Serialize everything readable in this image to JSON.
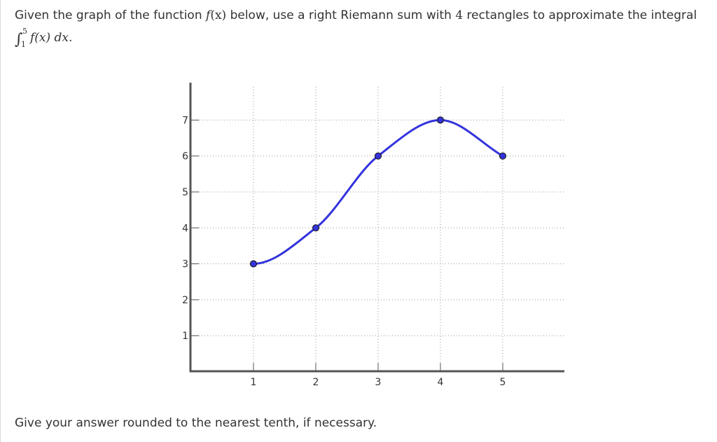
{
  "question": {
    "text_before": "Given the graph of the function ",
    "fname": "f",
    "fvar": "(x)",
    "text_middle": " below, use a right Riemann sum with ",
    "rect_count": "4",
    "text_after": " rectangles to approximate the integral"
  },
  "integral": {
    "sign": "∫",
    "upper": "5",
    "lower": "1",
    "body": "f(x) dx."
  },
  "footer": "Give your answer rounded to the nearest tenth, if necessary.",
  "colors": {
    "curve": "#3333dd",
    "point_fill": "#3333dd",
    "point_stroke": "#222222",
    "axis": "#555555",
    "grid": "#999999",
    "text": "#333333"
  },
  "chart_data": {
    "type": "line",
    "title": "",
    "xlabel": "",
    "ylabel": "",
    "xlim": [
      -0.05,
      5.0
    ],
    "ylim": [
      0,
      8.0
    ],
    "xticks": [
      1,
      2,
      3,
      4,
      5
    ],
    "yticks": [
      1,
      2,
      3,
      4,
      5,
      6,
      7
    ],
    "grid": "dotted",
    "points": [
      {
        "x": 1,
        "y": 3
      },
      {
        "x": 2,
        "y": 4
      },
      {
        "x": 3,
        "y": 6
      },
      {
        "x": 4,
        "y": 7
      },
      {
        "x": 5,
        "y": 6
      }
    ]
  }
}
